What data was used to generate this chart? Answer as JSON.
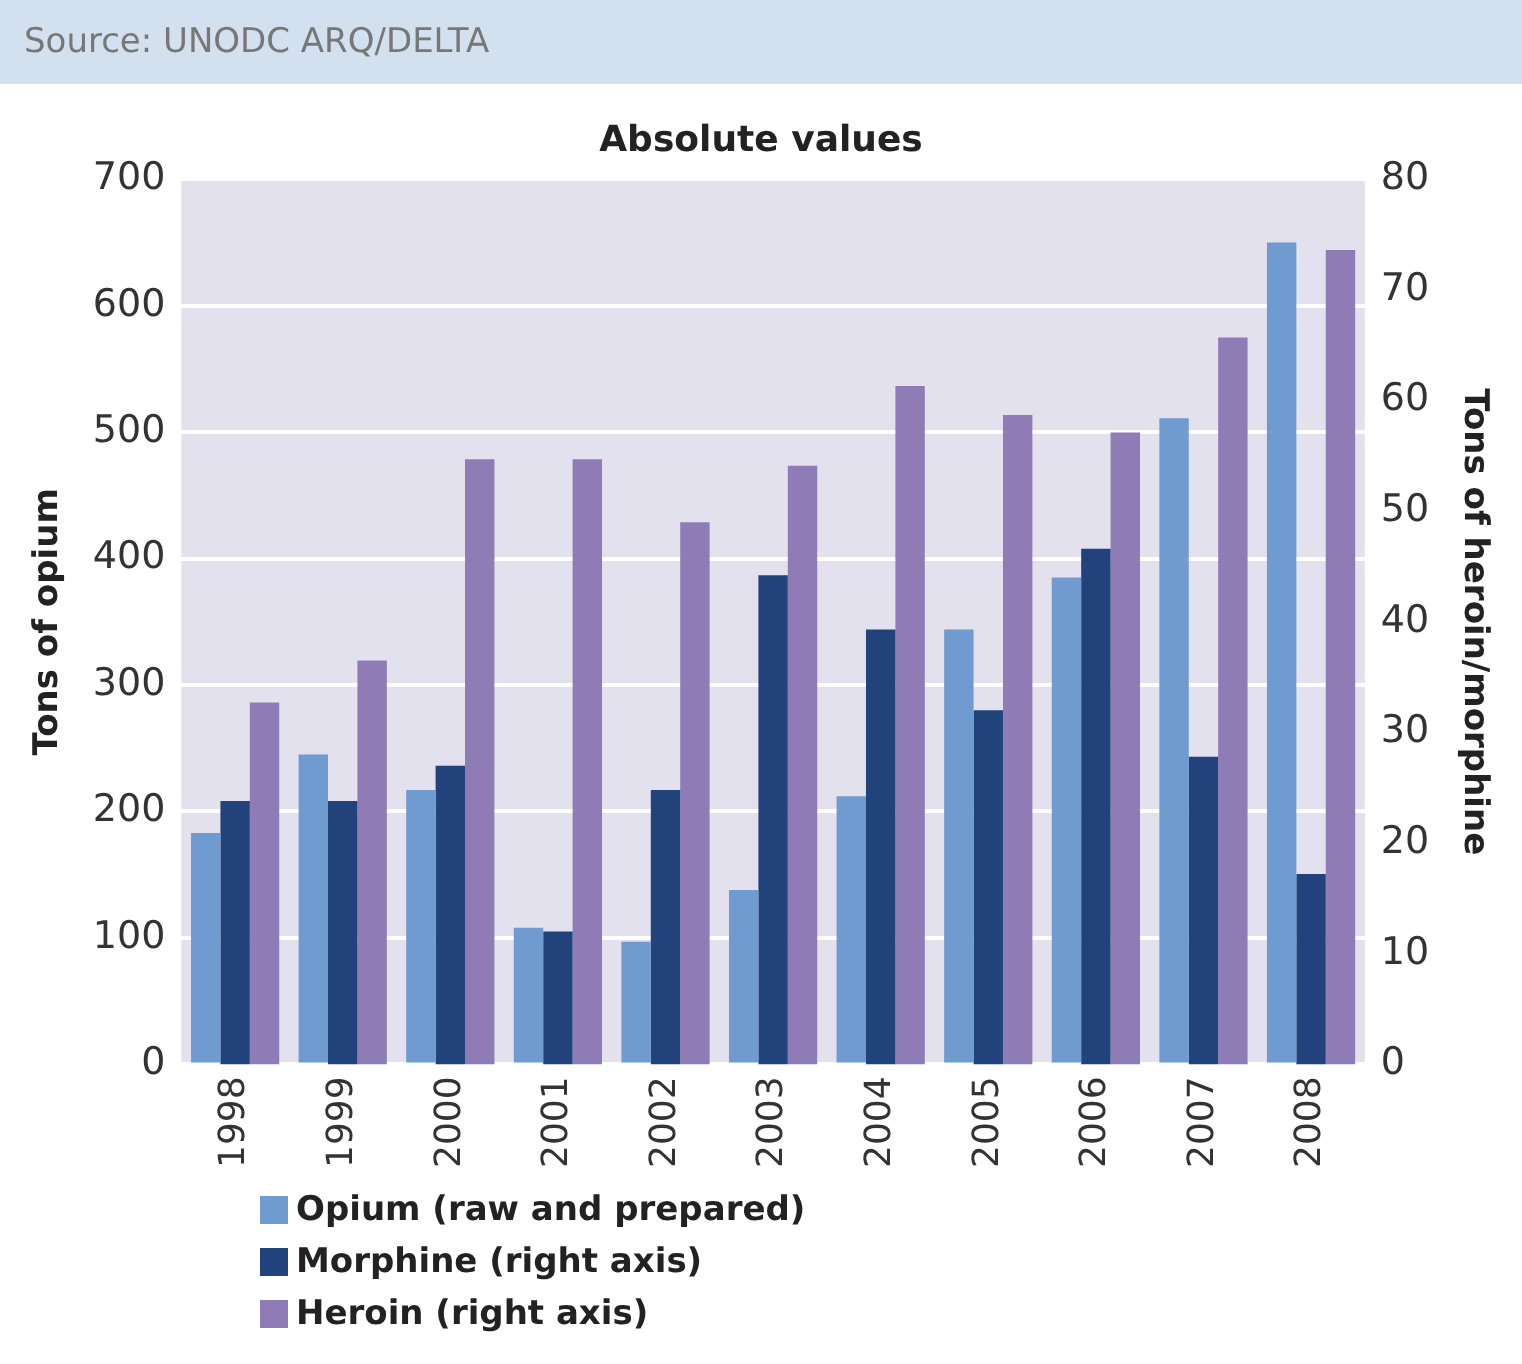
{
  "chart_data": {
    "type": "bar",
    "title": "Absolute values",
    "annotations": [
      "Source: UNODC ARQ/DELTA"
    ],
    "categories": [
      "1998",
      "1999",
      "2000",
      "2001",
      "2002",
      "2003",
      "2004",
      "2005",
      "2006",
      "2007",
      "2008"
    ],
    "series": [
      {
        "name": "Opium (raw and prepared)",
        "color": "#6f9bd1",
        "values": [
          183,
          245,
          217,
          108,
          97,
          138,
          212,
          344,
          385,
          511,
          650
        ]
      },
      {
        "name": "Morphine (right axis)",
        "color": "#22427c",
        "axis": "y2",
        "values": [
          23.8,
          23.8,
          27,
          12,
          24.8,
          44.2,
          39.3,
          32,
          46.6,
          27.8,
          17.2
        ]
      },
      {
        "name": "Heroin (right axis)",
        "color": "#8f7bb5",
        "axis": "y2",
        "values": [
          32.7,
          36.5,
          54.7,
          54.7,
          49,
          54.1,
          61.3,
          58.7,
          57.1,
          65.7,
          73.6
        ]
      }
    ],
    "ylabel": "Tons of opium",
    "y2label": "Tons of heroin/morphine",
    "ylim": [
      0,
      700
    ],
    "yticks": [
      0,
      100,
      200,
      300,
      400,
      500,
      600,
      700
    ],
    "y2lim": [
      0,
      80
    ],
    "y2ticks": [
      0,
      10,
      20,
      30,
      40,
      50,
      60,
      70,
      80
    ],
    "grid": "y",
    "legend": "bottom"
  }
}
